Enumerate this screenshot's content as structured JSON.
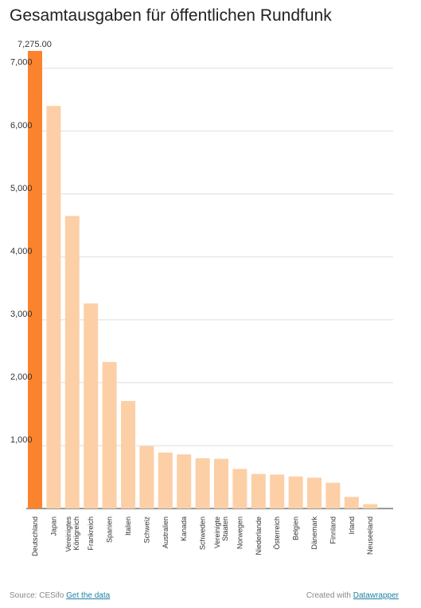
{
  "title": "Gesamtausgaben für öffentlichen Rundfunk",
  "footer": {
    "source_label": "Source: CESifo",
    "get_data_link": "Get the data",
    "created_label": "Created with",
    "datawrapper_link": "Datawrapper"
  },
  "colors": {
    "highlight_bar": "#fb832d",
    "bar": "#fdcfa6",
    "grid": "#dddddd",
    "baseline": "#333333",
    "text": "#333333",
    "link": "#1d81a2"
  },
  "chart_data": {
    "type": "bar",
    "title": "Gesamtausgaben für öffentlichen Rundfunk",
    "xlabel": "",
    "ylabel": "",
    "ylim": [
      0,
      7300
    ],
    "yticks": [
      1000,
      2000,
      3000,
      4000,
      5000,
      6000,
      7000
    ],
    "ytick_labels": [
      "1,000",
      "2,000",
      "3,000",
      "4,000",
      "5,000",
      "6,000",
      "7,000"
    ],
    "grid": true,
    "categories": [
      "Deutschland",
      "Japan",
      "Vereinigtes Königreich",
      "Frankreich",
      "Spanien",
      "Italien",
      "Schweiz",
      "Australien",
      "Kanada",
      "Schweden",
      "Vereinigte Staaten",
      "Norwegen",
      "Niederlande",
      "Österreich",
      "Belgien",
      "Dänemark",
      "Finnland",
      "Irland",
      "Neuseeland"
    ],
    "values": [
      7275,
      6400,
      4650,
      3260,
      2330,
      1710,
      990,
      890,
      860,
      800,
      790,
      630,
      550,
      540,
      510,
      490,
      410,
      185,
      70
    ],
    "highlight_index": 0,
    "data_labels": [
      {
        "index": 0,
        "text": "7,275.00"
      }
    ]
  }
}
